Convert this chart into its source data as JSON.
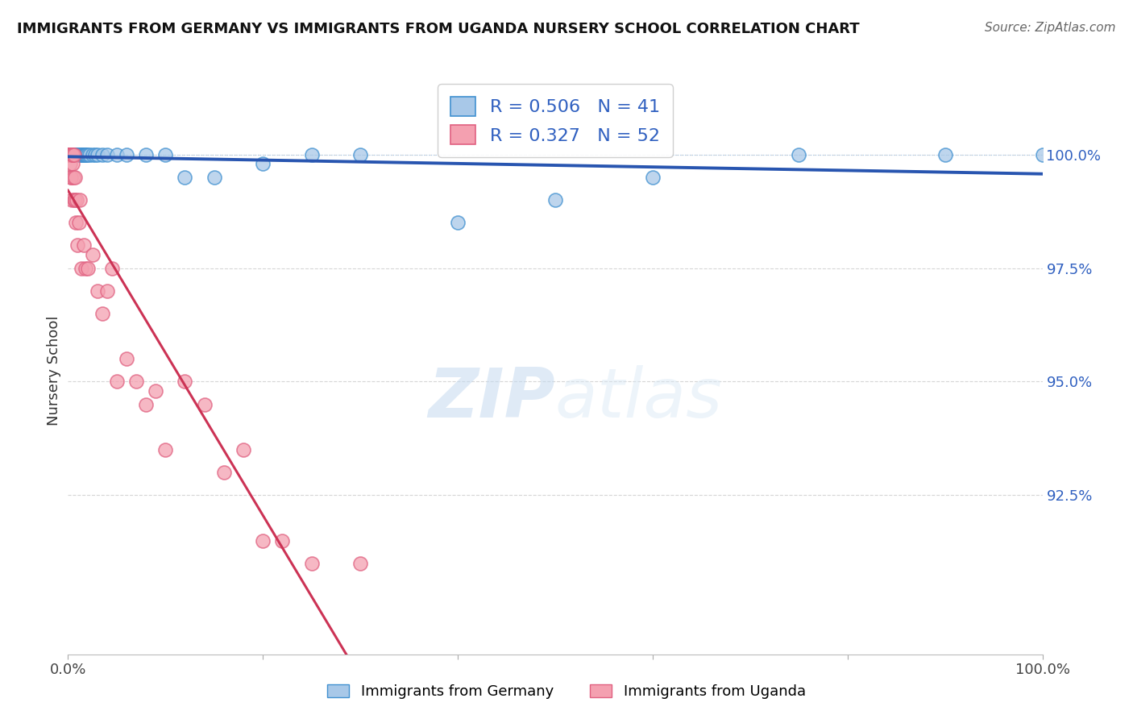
{
  "title": "IMMIGRANTS FROM GERMANY VS IMMIGRANTS FROM UGANDA NURSERY SCHOOL CORRELATION CHART",
  "source": "Source: ZipAtlas.com",
  "ylabel": "Nursery School",
  "watermark_zip": "ZIP",
  "watermark_atlas": "atlas",
  "legend_blue_r": "R = 0.506",
  "legend_blue_n": "N = 41",
  "legend_pink_r": "R = 0.327",
  "legend_pink_n": "N = 52",
  "blue_color": "#a8c8e8",
  "pink_color": "#f4a0b0",
  "blue_edge_color": "#4090d0",
  "pink_edge_color": "#e06080",
  "blue_line_color": "#2855b0",
  "pink_line_color": "#cc3355",
  "grid_color": "#cccccc",
  "ytick_color": "#3060c0",
  "blue_scatter_x": [
    0.1,
    0.2,
    0.3,
    0.4,
    0.5,
    0.6,
    0.7,
    0.8,
    0.9,
    1.0,
    1.1,
    1.2,
    1.3,
    1.4,
    1.5,
    1.6,
    1.7,
    1.8,
    1.9,
    2.0,
    2.2,
    2.5,
    2.8,
    3.0,
    3.5,
    4.0,
    5.0,
    6.0,
    8.0,
    10.0,
    12.0,
    15.0,
    20.0,
    25.0,
    30.0,
    40.0,
    50.0,
    60.0,
    75.0,
    90.0,
    100.0
  ],
  "blue_scatter_y": [
    100.0,
    100.0,
    100.0,
    100.0,
    100.0,
    100.0,
    100.0,
    100.0,
    100.0,
    100.0,
    100.0,
    100.0,
    100.0,
    100.0,
    100.0,
    100.0,
    100.0,
    100.0,
    100.0,
    100.0,
    100.0,
    100.0,
    100.0,
    100.0,
    100.0,
    100.0,
    100.0,
    100.0,
    100.0,
    100.0,
    99.5,
    99.5,
    99.8,
    100.0,
    100.0,
    98.5,
    99.0,
    99.5,
    100.0,
    100.0,
    100.0
  ],
  "pink_scatter_x": [
    0.05,
    0.07,
    0.1,
    0.12,
    0.15,
    0.18,
    0.2,
    0.22,
    0.25,
    0.28,
    0.3,
    0.32,
    0.35,
    0.38,
    0.4,
    0.42,
    0.45,
    0.48,
    0.5,
    0.55,
    0.6,
    0.65,
    0.7,
    0.75,
    0.8,
    0.9,
    1.0,
    1.1,
    1.2,
    1.4,
    1.6,
    1.8,
    2.0,
    2.5,
    3.0,
    3.5,
    4.0,
    4.5,
    5.0,
    6.0,
    7.0,
    8.0,
    9.0,
    10.0,
    12.0,
    14.0,
    16.0,
    18.0,
    20.0,
    22.0,
    25.0,
    30.0
  ],
  "pink_scatter_y": [
    100.0,
    100.0,
    100.0,
    100.0,
    100.0,
    99.8,
    100.0,
    100.0,
    100.0,
    99.5,
    100.0,
    99.5,
    99.0,
    100.0,
    100.0,
    100.0,
    99.8,
    100.0,
    100.0,
    99.5,
    99.0,
    100.0,
    99.0,
    99.5,
    98.5,
    99.0,
    98.0,
    98.5,
    99.0,
    97.5,
    98.0,
    97.5,
    97.5,
    97.8,
    97.0,
    96.5,
    97.0,
    97.5,
    95.0,
    95.5,
    95.0,
    94.5,
    94.8,
    93.5,
    95.0,
    94.5,
    93.0,
    93.5,
    91.5,
    91.5,
    91.0,
    91.0
  ],
  "xlim": [
    0,
    100
  ],
  "ylim": [
    89.0,
    101.5
  ],
  "ytick_vals": [
    92.5,
    95.0,
    97.5,
    100.0
  ]
}
